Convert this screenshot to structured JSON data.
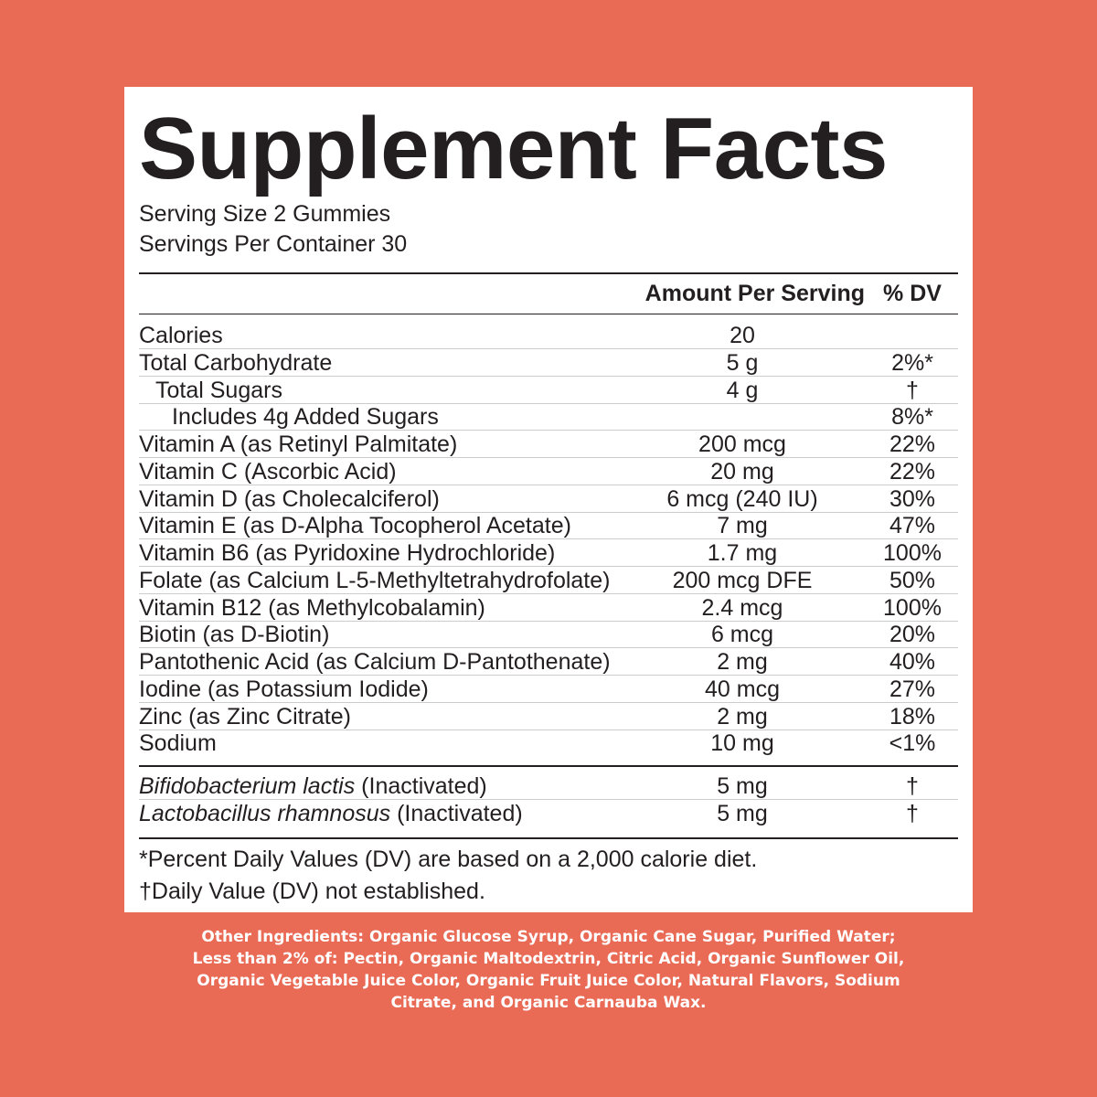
{
  "label": {
    "title": "Supplement Facts",
    "serving": [
      "Serving Size 2 Gummies",
      "Servings Per Container 30"
    ],
    "header": {
      "amount": "Amount Per Serving",
      "dv": "% DV"
    },
    "rows": [
      {
        "name": "Calories",
        "amount": "20",
        "dv": ""
      },
      {
        "name": "Total Carbohydrate",
        "amount": "5 g",
        "dv": "2%*"
      },
      {
        "name": "Total Sugars",
        "amount": "4 g",
        "dv": "†"
      },
      {
        "name": "Includes 4g Added Sugars",
        "amount": "",
        "dv": "8%*"
      },
      {
        "name": "Vitamin A (as Retinyl Palmitate)",
        "amount": "200 mcg",
        "dv": "22%"
      },
      {
        "name": "Vitamin C (Ascorbic Acid)",
        "amount": "20 mg",
        "dv": "22%"
      },
      {
        "name": "Vitamin D (as Cholecalciferol)",
        "amount": "6 mcg (240 IU)",
        "dv": "30%"
      },
      {
        "name": "Vitamin E (as D-Alpha Tocopherol Acetate)",
        "amount": "7 mg",
        "dv": "47%"
      },
      {
        "name": "Vitamin B6 (as Pyridoxine Hydrochloride)",
        "amount": "1.7 mg",
        "dv": "100%"
      },
      {
        "name": "Folate (as Calcium L-5-Methyltetrahydrofolate)",
        "amount": "200 mcg DFE",
        "dv": "50%"
      },
      {
        "name": "Vitamin B12 (as Methylcobalamin)",
        "amount": "2.4 mcg",
        "dv": "100%"
      },
      {
        "name": "Biotin (as D-Biotin)",
        "amount": "6 mcg",
        "dv": "20%"
      },
      {
        "name": "Pantothenic Acid (as Calcium D-Pantothenate)",
        "amount": "2 mg",
        "dv": "40%"
      },
      {
        "name": "Iodine (as Potassium Iodide)",
        "amount": "40 mcg",
        "dv": "27%"
      },
      {
        "name": "Zinc (as Zinc Citrate)",
        "amount": "2 mg",
        "dv": "18%"
      },
      {
        "name": "Sodium",
        "amount": "10 mg",
        "dv": "<1%"
      }
    ],
    "probiotics": [
      {
        "name_italic": "Bifidobacterium lactis",
        "name": "(Inactivated)",
        "amount": "5 mg",
        "dv": "†"
      },
      {
        "name_italic": "Lactobacillus rhamnosus",
        "name": "(Inactivated)",
        "amount": "5 mg",
        "dv": "†"
      }
    ],
    "footnotes": [
      "*Percent Daily Values (DV) are based on a 2,000 calorie diet.",
      "†Daily Value (DV) not established."
    ],
    "other_ingredients": [
      "Other Ingredients: Organic Glucose Syrup, Organic Cane Sugar, Purified Water;",
      "Less than 2% of: Pectin, Organic Maltodextrin, Citric Acid, Organic Sunflower Oil,",
      "Organic Vegetable Juice Color, Organic Fruit Juice Color, Natural Flavors, Sodium",
      "Citrate, and Organic Carnauba Wax."
    ]
  }
}
